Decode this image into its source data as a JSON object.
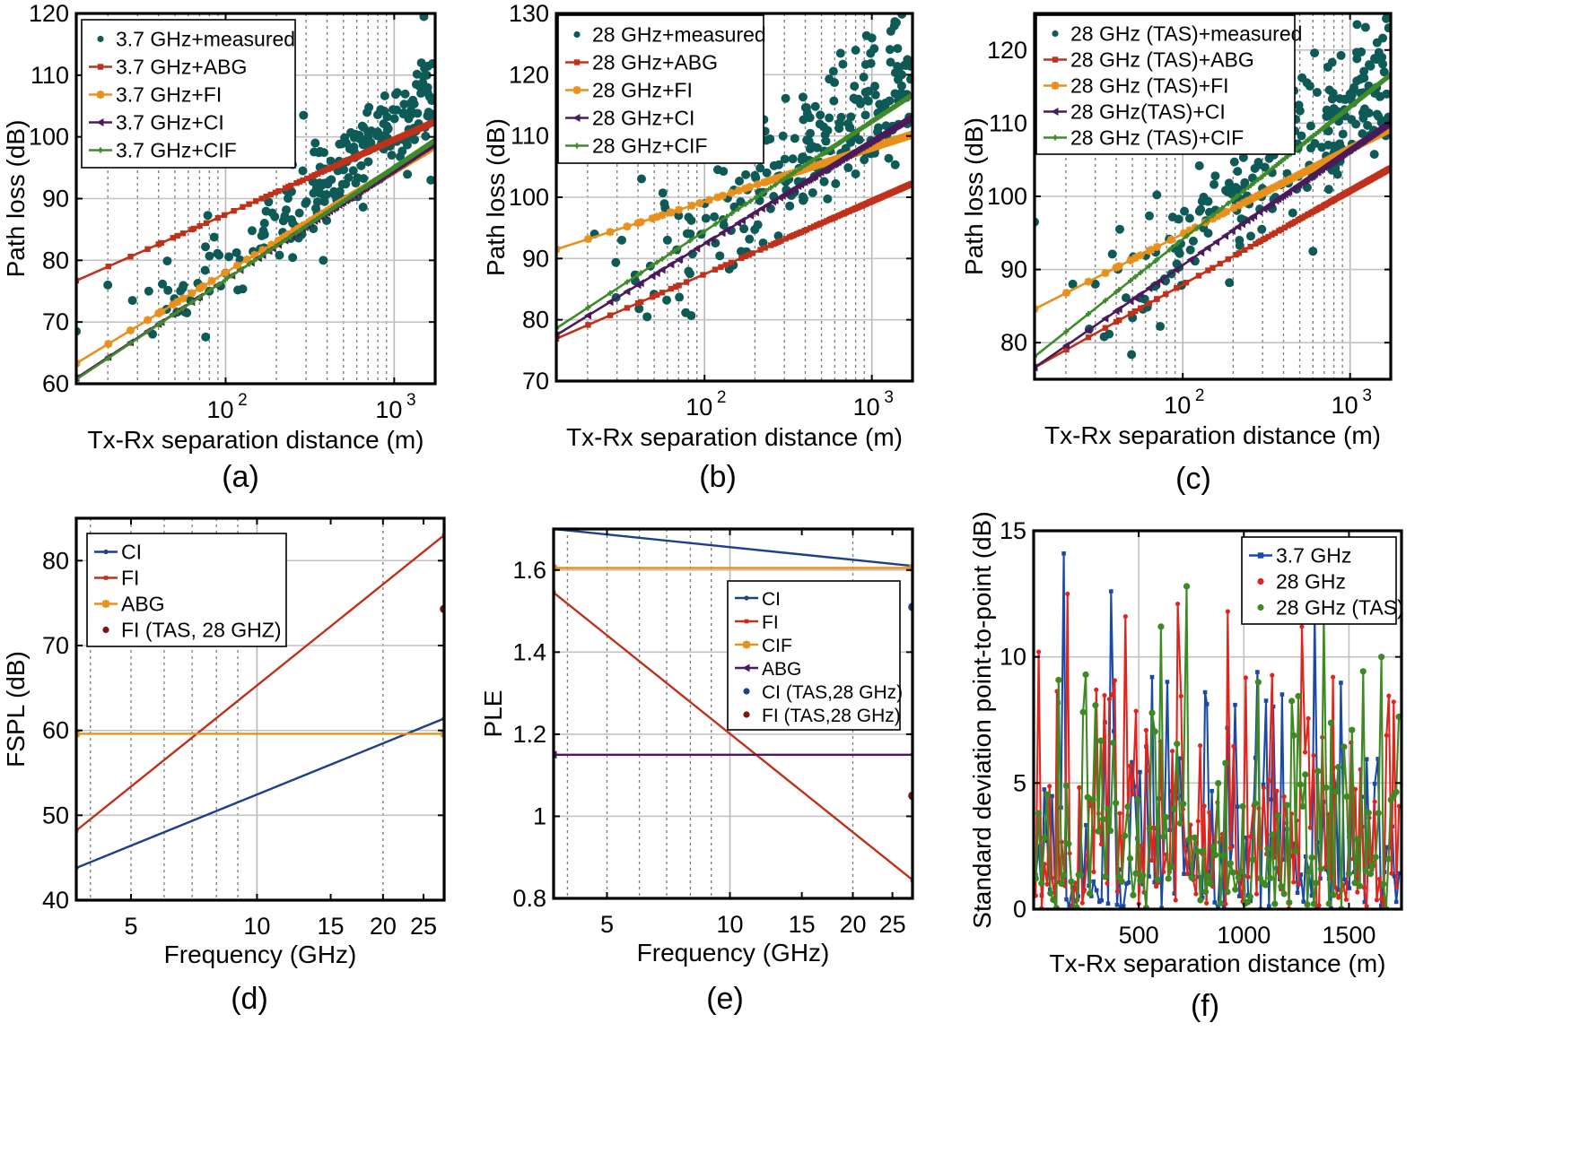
{
  "colors": {
    "teal": "#0e5a57",
    "red": "#c0311b",
    "orange": "#e8901c",
    "purple": "#4b1a5a",
    "green": "#3f8a2a",
    "blue": "#1f3f8c",
    "darkred": "#7a1515",
    "blue_f": "#1a4aa8",
    "red_f": "#e3241c",
    "green_f": "#3d8a22"
  },
  "chart_data": [
    {
      "id": "a",
      "caption": "(a)",
      "type": "scatter+line",
      "xscale": "log",
      "xlim": [
        13,
        1750
      ],
      "ylim": [
        60,
        120
      ],
      "xticks": [
        100,
        1000
      ],
      "xtick_labels": [
        "10",
        "10"
      ],
      "xtick_exps": [
        "2",
        "3"
      ],
      "yticks": [
        60,
        70,
        80,
        90,
        100,
        110,
        120
      ],
      "ytick_labels": [
        "60",
        "70",
        "80",
        "90",
        "100",
        "110",
        "120"
      ],
      "xlabel": "Tx-Rx separation distance (m)",
      "ylabel": "Path loss (dB)",
      "legend_location": "top-left",
      "scatter": {
        "name": "3.7 GHz+measured",
        "color": "teal",
        "seed": 11,
        "fit": [
          60.5,
          21.5
        ],
        "spread": 3.5,
        "points": [
          [
            13,
            68.5
          ],
          [
            20,
            76
          ],
          [
            28,
            73.5
          ],
          [
            35,
            75
          ],
          [
            62,
            73.5
          ],
          [
            80,
            75
          ],
          [
            170,
            86
          ],
          [
            290,
            103.5
          ],
          [
            340,
            99
          ],
          [
            380,
            80
          ],
          [
            520,
            99
          ],
          [
            1500,
            119.5
          ],
          [
            1450,
            112
          ],
          [
            1580,
            108
          ],
          [
            1600,
            104
          ],
          [
            1650,
            93
          ]
        ]
      },
      "series": [
        {
          "name": "3.7 GHz+ABG",
          "color": "red",
          "a": 76.7,
          "b": 12.1,
          "marker": "square"
        },
        {
          "name": "3.7 GHz+FI",
          "color": "orange",
          "a": 63.3,
          "b": 16.6,
          "marker": "star"
        },
        {
          "name": "3.7 GHz+CI",
          "color": "purple",
          "a": 60.9,
          "b": 18.0,
          "marker": "triangle"
        },
        {
          "name": "3.7 GHz+CIF",
          "color": "green",
          "a": 60.7,
          "b": 18.2,
          "marker": "cross"
        }
      ]
    },
    {
      "id": "b",
      "caption": "(b)",
      "type": "scatter+line",
      "xscale": "log",
      "xlim": [
        13,
        1750
      ],
      "ylim": [
        70,
        130
      ],
      "xticks": [
        100,
        1000
      ],
      "xtick_labels": [
        "10",
        "10"
      ],
      "xtick_exps": [
        "2",
        "3"
      ],
      "yticks": [
        70,
        80,
        90,
        100,
        110,
        120,
        130
      ],
      "ytick_labels": [
        "70",
        "80",
        "90",
        "100",
        "110",
        "120",
        "130"
      ],
      "xlabel": "Tx-Rx separation distance (m)",
      "ylabel": "Path loss (dB)",
      "legend_location": "top-left",
      "scatter": {
        "name": "28 GHz+measured",
        "color": "teal",
        "seed": 23,
        "fit": [
          77,
          20
        ],
        "spread": 5.5,
        "points": [
          [
            13,
            109
          ],
          [
            22,
            94
          ],
          [
            32,
            93
          ],
          [
            42,
            103
          ],
          [
            60,
            93
          ],
          [
            70,
            97
          ],
          [
            120,
            104.5
          ],
          [
            650,
            123.5
          ],
          [
            800,
            124
          ],
          [
            1000,
            126
          ],
          [
            1400,
            128.5
          ],
          [
            1600,
            121.5
          ],
          [
            1500,
            117
          ],
          [
            1200,
            114.5
          ]
        ]
      },
      "series": [
        {
          "name": "28 GHz+ABG",
          "color": "red",
          "a": 76.9,
          "b": 11.9,
          "marker": "square"
        },
        {
          "name": "28 GHz+FI",
          "color": "orange",
          "a": 91.5,
          "b": 8.8,
          "marker": "star"
        },
        {
          "name": "28 GHz+CI",
          "color": "purple",
          "a": 77.5,
          "b": 16.8,
          "marker": "triangle"
        },
        {
          "name": "28 GHz+CIF",
          "color": "green",
          "a": 78.6,
          "b": 17.9,
          "marker": "cross"
        }
      ]
    },
    {
      "id": "c",
      "caption": "(c)",
      "type": "scatter+line",
      "xscale": "log",
      "xlim": [
        13,
        1750
      ],
      "ylim": [
        75,
        125
      ],
      "xticks": [
        100,
        1000
      ],
      "xtick_labels": [
        "10",
        "10"
      ],
      "xtick_exps": [
        "2",
        "3"
      ],
      "yticks": [
        80,
        90,
        100,
        110,
        120
      ],
      "ytick_labels": [
        "80",
        "90",
        "100",
        "110",
        "120"
      ],
      "xlabel": "Tx-Rx separation distance (m)",
      "ylabel": "Path loss (dB)",
      "legend_location": "top-left",
      "scatter": {
        "name": "28 GHz (TAS)+measured",
        "color": "teal",
        "seed": 37,
        "fit": [
          77,
          18.5
        ],
        "spread": 4.2,
        "points": [
          [
            13,
            96.5
          ],
          [
            22,
            88
          ],
          [
            30,
            88
          ],
          [
            42,
            95.5
          ],
          [
            70,
            100.2
          ],
          [
            110,
            97
          ],
          [
            190,
            88.2
          ],
          [
            480,
            101
          ],
          [
            600,
            92.5
          ],
          [
            800,
            112
          ],
          [
            1000,
            114
          ],
          [
            1300,
            118
          ],
          [
            1450,
            121
          ],
          [
            1550,
            119
          ],
          [
            1600,
            117
          ]
        ]
      },
      "series": [
        {
          "name": "28 GHz (TAS)+ABG",
          "color": "red",
          "a": 76.6,
          "b": 12.8,
          "marker": "square"
        },
        {
          "name": "28 GHz (TAS)+FI",
          "color": "orange",
          "a": 84.6,
          "b": 11.6,
          "marker": "star"
        },
        {
          "name": "28 GHz(TAS)+CI",
          "color": "purple",
          "a": 76.6,
          "b": 15.8,
          "marker": "triangle"
        },
        {
          "name": "28 GHz (TAS)+CIF",
          "color": "green",
          "a": 78.1,
          "b": 18.1,
          "marker": "cross"
        }
      ]
    },
    {
      "id": "d",
      "caption": "(d)",
      "type": "line",
      "xscale": "log",
      "xlim": [
        3.7,
        28
      ],
      "ylim": [
        40,
        85
      ],
      "xticks": [
        5,
        10,
        15,
        20,
        25
      ],
      "xtick_labels": [
        "5",
        "10",
        "15",
        "20",
        "25"
      ],
      "yticks": [
        40,
        50,
        60,
        70,
        80
      ],
      "ytick_labels": [
        "40",
        "50",
        "60",
        "70",
        "80"
      ],
      "xlabel": "Frequency (GHz)",
      "ylabel": "FSPL (dB)",
      "legend_location": "top-left",
      "series": [
        {
          "name": "CI",
          "color": "blue",
          "x": [
            3.7,
            28
          ],
          "y": [
            43.8,
            61.4
          ]
        },
        {
          "name": "FI",
          "color": "red",
          "x": [
            3.7,
            28
          ],
          "y": [
            48.2,
            83.0
          ]
        },
        {
          "name": "ABG",
          "color": "orange",
          "x": [
            3.7,
            28
          ],
          "y": [
            59.6,
            59.6
          ]
        },
        {
          "name": "FI (TAS, 28 GHZ)",
          "color": "darkred",
          "x": [
            28
          ],
          "y": [
            74.3
          ],
          "marker_only": true
        }
      ]
    },
    {
      "id": "e",
      "caption": "(e)",
      "type": "line",
      "xscale": "log",
      "xlim": [
        3.7,
        28
      ],
      "ylim": [
        0.8,
        1.7
      ],
      "xticks": [
        5,
        10,
        15,
        20,
        25
      ],
      "xtick_labels": [
        "5",
        "10",
        "15",
        "20",
        "25"
      ],
      "yticks": [
        0.8,
        1.0,
        1.2,
        1.4,
        1.6
      ],
      "ytick_labels": [
        "0.8",
        "1",
        "1.2",
        "1.4",
        "1.6"
      ],
      "xlabel": "Frequency (GHz)",
      "ylabel": "PLE",
      "legend_location": "right",
      "series": [
        {
          "name": "CI",
          "color": "blue",
          "x": [
            3.7,
            28
          ],
          "y": [
            1.7,
            1.61
          ]
        },
        {
          "name": "FI",
          "color": "red",
          "x": [
            3.7,
            28
          ],
          "y": [
            1.545,
            0.845
          ]
        },
        {
          "name": "CIF",
          "color": "orange",
          "x": [
            3.7,
            28
          ],
          "y": [
            1.605,
            1.605
          ]
        },
        {
          "name": "ABG",
          "color": "purple",
          "x": [
            3.7,
            28
          ],
          "y": [
            1.15,
            1.15
          ]
        },
        {
          "name": "CI (TAS,28 GHz)",
          "color": "blue",
          "x": [
            28
          ],
          "y": [
            1.51
          ],
          "marker_only": true
        },
        {
          "name": "FI (TAS,28 GHz)",
          "color": "darkred",
          "x": [
            28
          ],
          "y": [
            1.05
          ],
          "marker_only": true
        }
      ]
    },
    {
      "id": "f",
      "caption": "(f)",
      "type": "line",
      "xscale": "linear",
      "xlim": [
        0,
        1750
      ],
      "ylim": [
        0,
        15
      ],
      "xticks": [
        500,
        1000,
        1500
      ],
      "xtick_labels": [
        "500",
        "1000",
        "1500"
      ],
      "yticks": [
        0,
        5,
        10,
        15
      ],
      "ytick_labels": [
        "0",
        "5",
        "10",
        "15"
      ],
      "xlabel": "Tx-Rx separation distance (m)",
      "ylabel": "Standard deviation point-to-point (dB)",
      "legend_location": "top-right",
      "series": [
        {
          "name": "3.7 GHz",
          "color": "blue_f",
          "seed": 51,
          "spikes": [
            [
              140,
              14.1
            ],
            [
              370,
              12.6
            ],
            [
              560,
              9.2
            ],
            [
              820,
              8.6
            ],
            [
              1060,
              9.4
            ],
            [
              1340,
              11.8
            ]
          ]
        },
        {
          "name": "28 GHz",
          "color": "red_f",
          "seed": 67,
          "spikes": [
            [
              30,
              10.2
            ],
            [
              160,
              12.5
            ],
            [
              430,
              11.6
            ],
            [
              690,
              12.1
            ],
            [
              920,
              11.8
            ],
            [
              1280,
              11.2
            ],
            [
              1420,
              9.2
            ]
          ]
        },
        {
          "name": "28 GHz (TAS)",
          "color": "green_f",
          "seed": 83,
          "spikes": [
            [
              250,
              9.3
            ],
            [
              610,
              11.2
            ],
            [
              730,
              12.8
            ],
            [
              1070,
              9.0
            ],
            [
              1380,
              11.6
            ],
            [
              1650,
              10.0
            ]
          ]
        }
      ]
    }
  ]
}
